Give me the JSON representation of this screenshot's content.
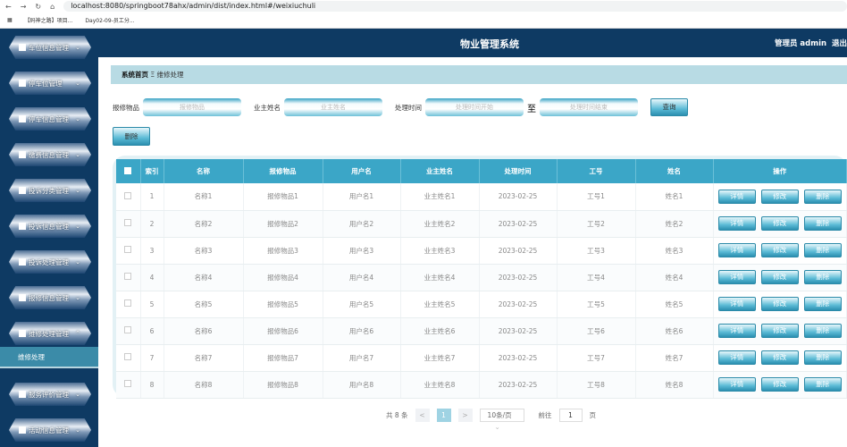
{
  "browser": {
    "url": "localhost:8080/springboot78ahx/admin/dist/index.html#/weixiuchuli",
    "bookmarks": [
      "【码神之路】项目...",
      "Day02-09-员工分..."
    ]
  },
  "sidebar": {
    "items": [
      {
        "label": "车位信息管理",
        "icon": "grid-icon"
      },
      {
        "label": "停车位管理",
        "icon": "grid-icon"
      },
      {
        "label": "停车信息管理",
        "icon": "grid-icon"
      },
      {
        "label": "缴费信息管理",
        "icon": "grid-icon"
      },
      {
        "label": "投诉分类管理",
        "icon": "book-icon"
      },
      {
        "label": "投诉信息管理",
        "icon": "monitor-icon"
      },
      {
        "label": "投诉处理管理",
        "icon": "bar-chart-icon"
      },
      {
        "label": "报修信息管理",
        "icon": "grid-icon"
      },
      {
        "label": "维修处理管理",
        "icon": "grid-icon",
        "expanded": true
      },
      {
        "label": "服务评价管理",
        "icon": "location-icon"
      },
      {
        "label": "活动信息管理",
        "icon": "clipboard-icon"
      }
    ],
    "subitem": "维修处理"
  },
  "header": {
    "title": "物业管理系统",
    "user": "管理员 admin",
    "logout": "退出"
  },
  "breadcrumb": {
    "home": "系统首页",
    "sep": "Ξ",
    "current": "维修处理"
  },
  "search": {
    "item_label": "报修物品",
    "item_ph": "报修物品",
    "owner_label": "业主姓名",
    "owner_ph": "业主姓名",
    "time_label": "处理时间",
    "start_ph": "处理时间开始",
    "to": "至",
    "end_ph": "处理时间结束",
    "query": "查询",
    "delete": "删除"
  },
  "table": {
    "headers": [
      "索引",
      "名称",
      "报修物品",
      "用户名",
      "业主姓名",
      "处理时间",
      "工号",
      "姓名",
      "操作"
    ],
    "rows": [
      [
        "1",
        "名称1",
        "报修物品1",
        "用户名1",
        "业主姓名1",
        "2023-02-25",
        "工号1",
        "姓名1"
      ],
      [
        "2",
        "名称2",
        "报修物品2",
        "用户名2",
        "业主姓名2",
        "2023-02-25",
        "工号2",
        "姓名2"
      ],
      [
        "3",
        "名称3",
        "报修物品3",
        "用户名3",
        "业主姓名3",
        "2023-02-25",
        "工号3",
        "姓名3"
      ],
      [
        "4",
        "名称4",
        "报修物品4",
        "用户名4",
        "业主姓名4",
        "2023-02-25",
        "工号4",
        "姓名4"
      ],
      [
        "5",
        "名称5",
        "报修物品5",
        "用户名5",
        "业主姓名5",
        "2023-02-25",
        "工号5",
        "姓名5"
      ],
      [
        "6",
        "名称6",
        "报修物品6",
        "用户名6",
        "业主姓名6",
        "2023-02-25",
        "工号6",
        "姓名6"
      ],
      [
        "7",
        "名称7",
        "报修物品7",
        "用户名7",
        "业主姓名7",
        "2023-02-25",
        "工号7",
        "姓名7"
      ],
      [
        "8",
        "名称8",
        "报修物品8",
        "用户名8",
        "业主姓名8",
        "2023-02-25",
        "工号8",
        "姓名8"
      ]
    ],
    "actions": [
      "详情",
      "修改",
      "删除"
    ]
  },
  "pager": {
    "total": "共 8 条",
    "current": "1",
    "size": "10条/页",
    "goto": "前往",
    "goto_val": "1",
    "page": "页"
  }
}
